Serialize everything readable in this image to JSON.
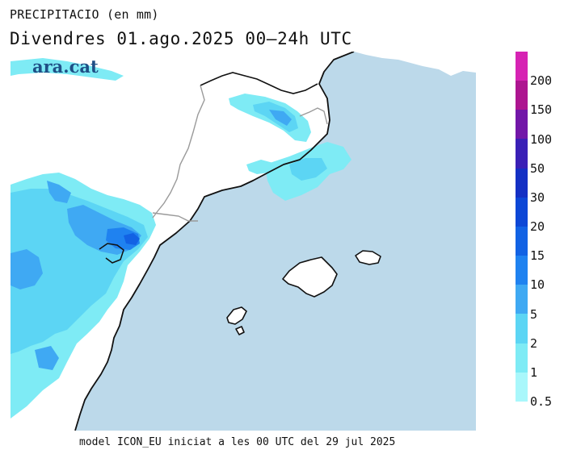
{
  "header": {
    "title": "PRECIPITACIO (en mm)",
    "subtitle": "Divendres  01.ago.2025 00–24h UTC"
  },
  "brand": {
    "logo": "ara.cat"
  },
  "footer": {
    "note": "model ICON_EU iniciat a les 00 UTC del 29 jul 2025"
  },
  "legend": {
    "labels": [
      "0.5",
      "1",
      "2",
      "5",
      "10",
      "15",
      "20",
      "30",
      "50",
      "100",
      "150",
      "200"
    ],
    "colors": [
      "#a9f7fb",
      "#7eebf5",
      "#5cd5f4",
      "#3fa9f3",
      "#1f82f0",
      "#1262e4",
      "#0d47d6",
      "#1430c4",
      "#3a20b6",
      "#7217a8",
      "#ad1590",
      "#d623b3"
    ]
  },
  "colors": {
    "sea": "#bcd9ea",
    "land": "#ffffff",
    "coast": "#111111",
    "border": "#9a9a9a"
  }
}
